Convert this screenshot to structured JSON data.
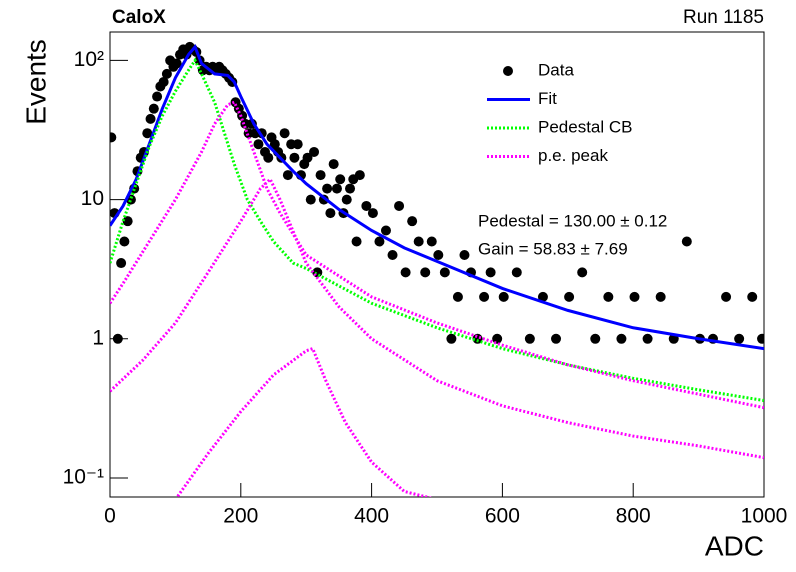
{
  "chart_data": {
    "type": "scatter",
    "title": "CaloX",
    "subtitle": "Run 1185",
    "x_label": "ADC",
    "y_label": "Events",
    "log_y": true,
    "legend": "top-right",
    "xlim": [
      0,
      1000
    ],
    "xticks": [
      0,
      200,
      400,
      600,
      800,
      1000
    ],
    "ylim": [
      0.073,
      160
    ],
    "yticks": [
      {
        "value": 0.1,
        "label": "10⁻¹"
      },
      1,
      10,
      {
        "value": 100,
        "label": "10²"
      }
    ],
    "annotations": [
      "Pedestal  = 130.00 ± 0.12",
      "Gain = 58.83 ± 7.69"
    ],
    "series": [
      {
        "name": "Data",
        "color": "#000000",
        "style": "points",
        "x": [
          2,
          7,
          12,
          17,
          22,
          27,
          32,
          37,
          42,
          47,
          52,
          57,
          62,
          67,
          72,
          77,
          82,
          87,
          92,
          97,
          102,
          107,
          112,
          117,
          122,
          127,
          132,
          137,
          142,
          147,
          152,
          157,
          162,
          167,
          172,
          177,
          182,
          187,
          192,
          197,
          202,
          207,
          212,
          217,
          222,
          227,
          232,
          237,
          242,
          247,
          252,
          257,
          262,
          267,
          272,
          277,
          282,
          287,
          292,
          297,
          302,
          307,
          312,
          317,
          322,
          327,
          332,
          337,
          342,
          347,
          352,
          357,
          362,
          367,
          372,
          377,
          382,
          392,
          402,
          412,
          422,
          432,
          442,
          452,
          462,
          472,
          482,
          492,
          502,
          512,
          522,
          532,
          542,
          552,
          562,
          572,
          582,
          592,
          602,
          622,
          642,
          662,
          682,
          702,
          722,
          742,
          762,
          782,
          802,
          822,
          842,
          862,
          882,
          902,
          922,
          942,
          962,
          982,
          997
        ],
        "values": [
          28,
          8,
          1,
          3.5,
          5,
          7,
          10,
          12,
          16,
          20,
          22,
          30,
          38,
          45,
          55,
          65,
          70,
          80,
          100,
          90,
          95,
          110,
          120,
          110,
          125,
          120,
          115,
          100,
          85,
          90,
          85,
          90,
          85,
          90,
          85,
          80,
          75,
          70,
          50,
          45,
          40,
          35,
          30,
          35,
          30,
          25,
          30,
          22,
          20,
          28,
          25,
          22,
          20,
          30,
          15,
          25,
          20,
          25,
          15,
          18,
          20,
          10,
          22,
          3,
          15,
          10,
          12,
          8,
          18,
          12,
          14,
          8,
          10,
          12,
          14,
          5,
          15,
          9,
          8,
          5,
          6,
          4,
          9,
          3,
          7,
          5,
          3,
          5,
          4,
          3,
          1,
          2,
          4,
          3,
          1,
          2,
          3,
          1,
          2,
          3,
          1,
          2,
          1,
          2,
          3,
          1,
          2,
          1,
          2,
          1,
          2,
          1,
          5,
          1,
          1,
          2,
          1,
          2,
          1
        ]
      },
      {
        "name": "Fit",
        "color": "#0000ff",
        "style": "solid",
        "x": [
          0,
          20,
          40,
          60,
          80,
          100,
          120,
          130,
          140,
          160,
          180,
          190,
          200,
          220,
          240,
          260,
          280,
          300,
          350,
          400,
          450,
          500,
          600,
          700,
          800,
          900,
          1000
        ],
        "values": [
          6.5,
          9,
          14,
          25,
          45,
          75,
          110,
          125,
          95,
          80,
          78,
          70,
          55,
          35,
          25,
          20,
          16,
          13,
          8.5,
          6,
          4.5,
          3.6,
          2.3,
          1.6,
          1.2,
          1.0,
          0.85
        ]
      },
      {
        "name": "Pedestal CB",
        "color": "#00ff00",
        "style": "dotted",
        "x": [
          0,
          20,
          40,
          60,
          80,
          100,
          120,
          130,
          140,
          160,
          175,
          190,
          210,
          230,
          250,
          280,
          300,
          350,
          400,
          500,
          600,
          700,
          800,
          900,
          1000
        ],
        "values": [
          3.5,
          7,
          13,
          24,
          40,
          60,
          85,
          100,
          80,
          50,
          30,
          18,
          10,
          7,
          5,
          3.5,
          3.2,
          2.4,
          1.8,
          1.2,
          0.85,
          0.65,
          0.52,
          0.43,
          0.36
        ]
      },
      {
        "name": "p.e. peak",
        "color": "#ff00ff",
        "style": "dotted",
        "x": [
          0,
          20,
          60,
          100,
          140,
          160,
          180,
          190,
          200,
          220,
          240,
          260,
          300,
          400,
          500,
          600,
          700,
          800,
          900,
          1000
        ],
        "values": [
          1.8,
          2.5,
          5,
          10,
          22,
          35,
          48,
          50,
          40,
          22,
          12,
          8,
          4,
          2,
          1.3,
          0.9,
          0.65,
          0.5,
          0.4,
          0.32
        ]
      },
      {
        "color": "#ff00ff",
        "style": "dotted",
        "x": [
          0,
          50,
          100,
          150,
          200,
          230,
          245,
          260,
          300,
          350,
          400,
          500,
          600,
          700,
          800,
          900,
          1000
        ],
        "values": [
          0.42,
          0.7,
          1.3,
          3,
          7,
          12,
          14,
          10,
          3.5,
          1.7,
          1,
          0.5,
          0.33,
          0.25,
          0.2,
          0.17,
          0.14
        ]
      },
      {
        "color": "#ff00ff",
        "style": "dotted",
        "x": [
          100,
          150,
          200,
          250,
          300,
          310,
          330,
          360,
          400,
          450,
          500
        ],
        "values": [
          0.07,
          0.15,
          0.3,
          0.55,
          0.82,
          0.85,
          0.5,
          0.25,
          0.13,
          0.08,
          0.07
        ]
      }
    ]
  }
}
